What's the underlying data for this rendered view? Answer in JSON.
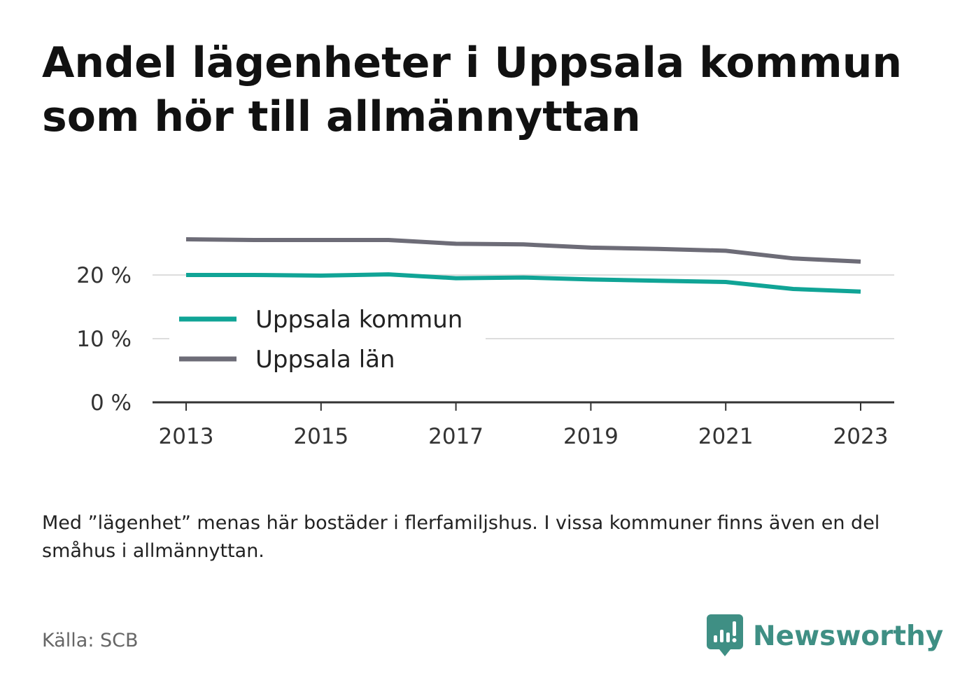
{
  "title": "Andel lägenheter i Uppsala kommun som hör till allmännyttan",
  "note": "Med ”lägenhet” menas här bostäder i flerfamiljshus. I vissa kommuner finns även en del småhus i allmännyttan.",
  "source": "Källa: SCB",
  "brand": {
    "name": "Newsworthy",
    "icon": "newsworthy-logo-icon",
    "color": "#3f8f84"
  },
  "chart_data": {
    "type": "line",
    "x": [
      2013,
      2014,
      2015,
      2016,
      2017,
      2018,
      2019,
      2020,
      2021,
      2022,
      2023
    ],
    "x_ticks": [
      "2013",
      "2015",
      "2017",
      "2019",
      "2021",
      "2023"
    ],
    "y_ticks": [
      {
        "value": 0,
        "label": "0 %"
      },
      {
        "value": 10,
        "label": "10 %"
      },
      {
        "value": 20,
        "label": "20 %"
      }
    ],
    "ylim": [
      0,
      27
    ],
    "xlim": [
      2012.5,
      2023.5
    ],
    "grid": true,
    "legend_position": "center-left",
    "series": [
      {
        "name": "Uppsala kommun",
        "color": "#10a496",
        "values": [
          20.0,
          20.0,
          19.9,
          20.1,
          19.5,
          19.6,
          19.3,
          19.1,
          18.9,
          17.8,
          17.4
        ]
      },
      {
        "name": "Uppsala län",
        "color": "#6d6c77",
        "values": [
          25.6,
          25.5,
          25.5,
          25.5,
          24.9,
          24.8,
          24.3,
          24.1,
          23.8,
          22.6,
          22.1
        ]
      }
    ]
  }
}
